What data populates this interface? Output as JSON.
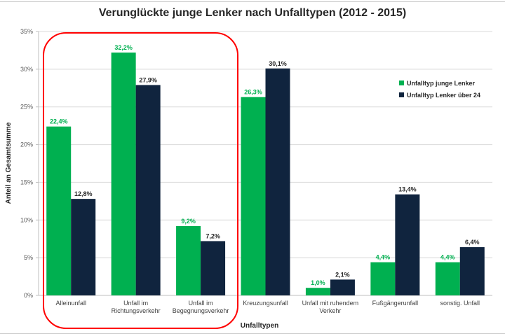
{
  "chart_data": {
    "type": "bar",
    "title": "Verunglückte junge Lenker nach Unfalltypen (2012 - 2015)",
    "xlabel": "Unfalltypen",
    "ylabel": "Anteil an Gesamtsumme",
    "ylim": [
      0,
      35
    ],
    "yticks": [
      "0%",
      "5%",
      "10%",
      "15%",
      "20%",
      "25%",
      "30%",
      "35%"
    ],
    "ytick_values": [
      0,
      5,
      10,
      15,
      20,
      25,
      30,
      35
    ],
    "grid": true,
    "legend_position": "top-right",
    "categories": [
      [
        "Alleinunfall"
      ],
      [
        "Unfall im",
        "Richtungsverkehr"
      ],
      [
        "Unfall im",
        "Begegnungsverkehr"
      ],
      [
        "Kreuzungsunfall"
      ],
      [
        "Unfall mit ruhendem",
        "Verkehr"
      ],
      [
        "Fußgängerunfall"
      ],
      [
        "sonstig. Unfall"
      ]
    ],
    "series": [
      {
        "name": "Unfalltyp junge Lenker",
        "color": "#00b050",
        "values": [
          22.4,
          32.2,
          9.2,
          26.3,
          1.0,
          4.4,
          4.4
        ],
        "labels": [
          "22,4%",
          "32,2%",
          "9,2%",
          "26,3%",
          "1,0%",
          "4,4%",
          "4,4%"
        ]
      },
      {
        "name": "Unfalltyp Lenker über 24",
        "color": "#10243e",
        "values": [
          12.8,
          27.9,
          7.2,
          30.1,
          2.1,
          13.4,
          6.4
        ],
        "labels": [
          "12,8%",
          "27,9%",
          "7,2%",
          "30,1%",
          "2,1%",
          "13,4%",
          "6,4%"
        ]
      }
    ],
    "annotation": {
      "type": "highlight-box",
      "color": "#ff0000",
      "covers_categories": [
        0,
        1,
        2
      ]
    }
  }
}
